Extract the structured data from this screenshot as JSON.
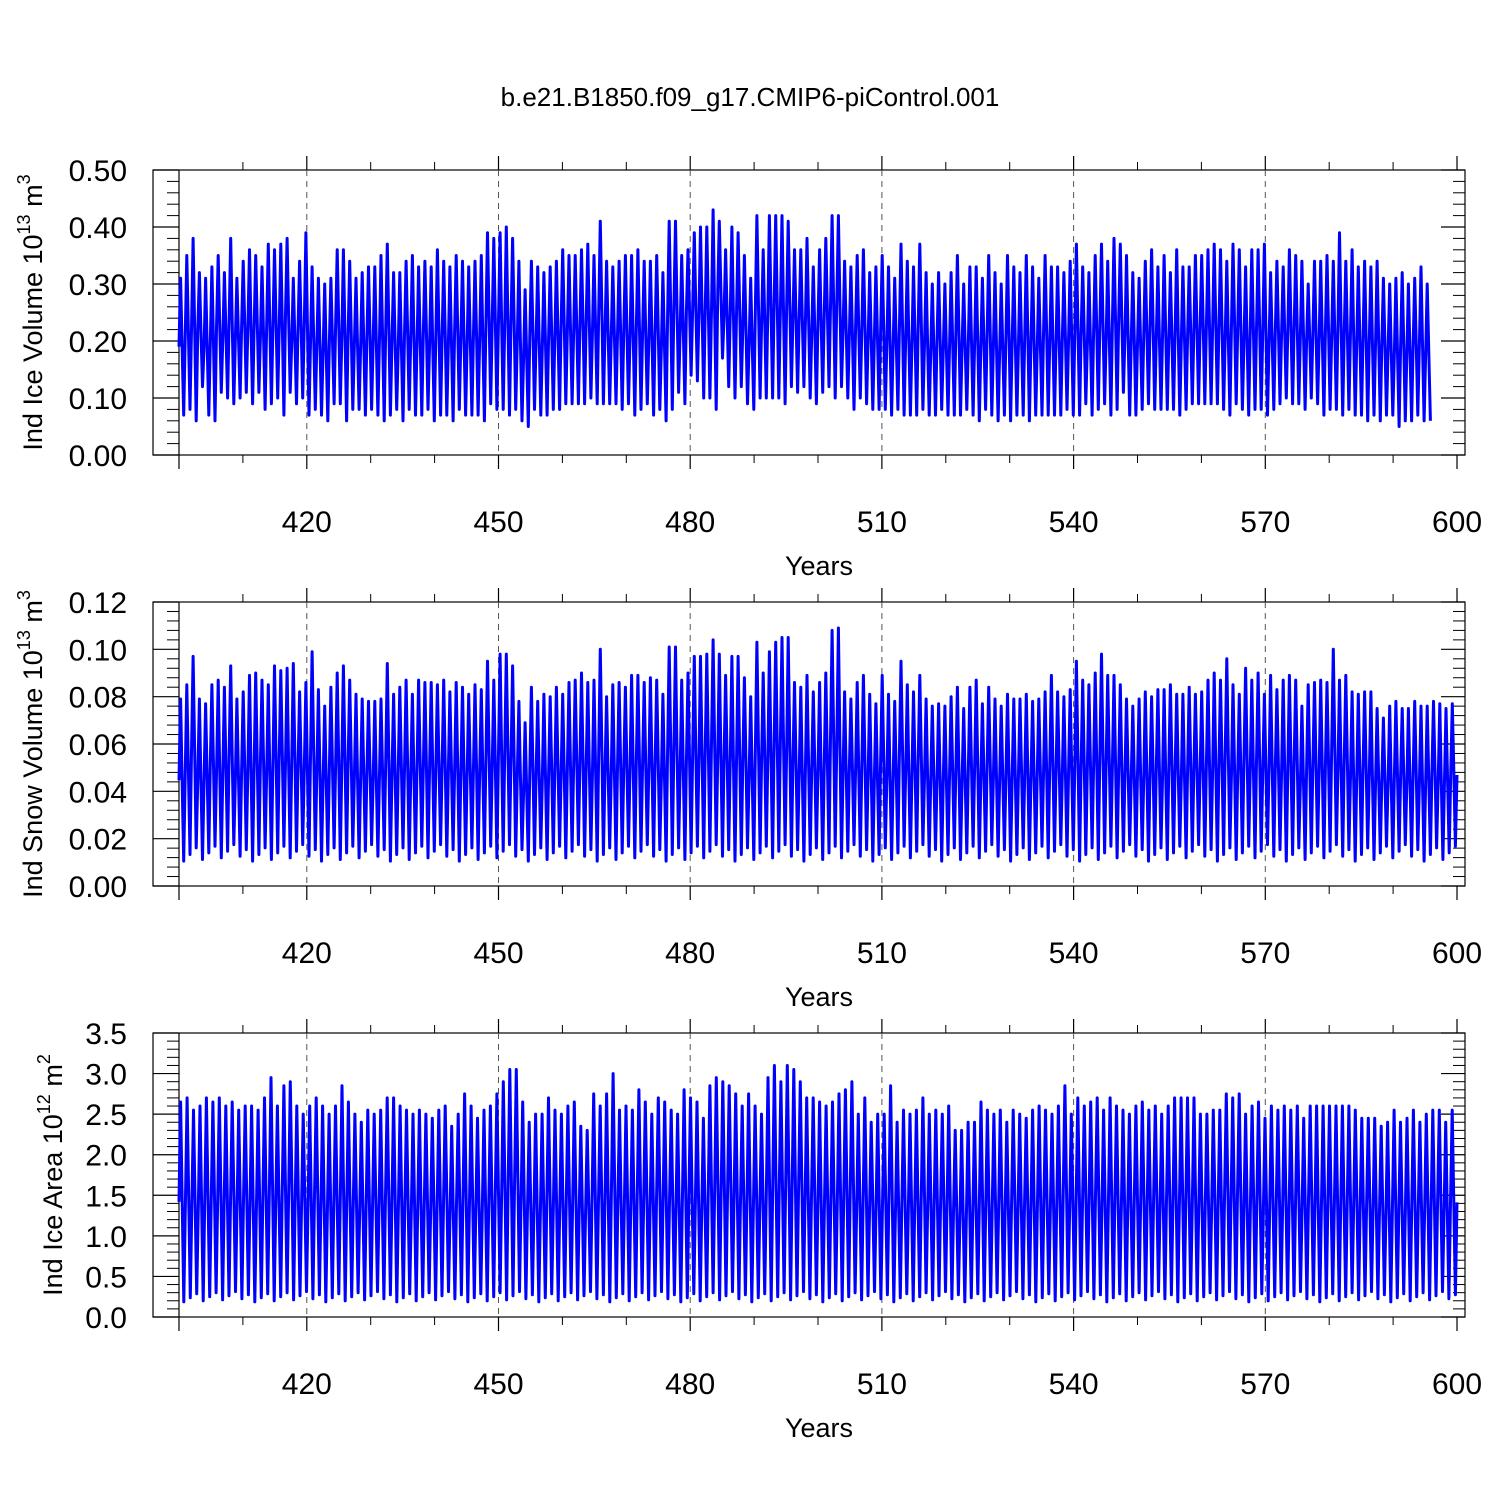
{
  "title": "b.e21.B1850.f09_g17.CMIP6-piControl.001",
  "colors": {
    "series": "#0000ff",
    "axis": "#000000",
    "grid": "#000000"
  },
  "chart_data": [
    {
      "type": "line",
      "title": "b.e21.B1850.f09_g17.CMIP6-piControl.001",
      "xlabel": "Years",
      "ylabel_prefix": "Ind Ice Volume 10",
      "ylabel_exp": "13",
      "ylabel_unit": "m",
      "ylabel_unit_exp": "3",
      "xlim": [
        400,
        600
      ],
      "ylim": [
        0,
        0.5
      ],
      "x_ticks": [
        "420",
        "450",
        "480",
        "510",
        "540",
        "570",
        "600"
      ],
      "y_ticks": [
        "0.00",
        "0.10",
        "0.20",
        "0.30",
        "0.40",
        "0.50"
      ],
      "grid": "vertical dashed at major x ticks",
      "series": [
        {
          "x_start": 400,
          "x_end": 600,
          "peaks": [
            0.31,
            0.35,
            0.38,
            0.32,
            0.31,
            0.33,
            0.35,
            0.32,
            0.38,
            0.31,
            0.34,
            0.36,
            0.35,
            0.33,
            0.37,
            0.36,
            0.37,
            0.38,
            0.31,
            0.34,
            0.39,
            0.33,
            0.31,
            0.3,
            0.31,
            0.36,
            0.36,
            0.34,
            0.31,
            0.32,
            0.33,
            0.33,
            0.35,
            0.37,
            0.32,
            0.32,
            0.34,
            0.35,
            0.33,
            0.34,
            0.33,
            0.36,
            0.34,
            0.33,
            0.35,
            0.34,
            0.33,
            0.34,
            0.35,
            0.39,
            0.38,
            0.39,
            0.4,
            0.38,
            0.34,
            0.29,
            0.34,
            0.33,
            0.32,
            0.33,
            0.34,
            0.36,
            0.35,
            0.35,
            0.36,
            0.37,
            0.35,
            0.41,
            0.34,
            0.33,
            0.34,
            0.35,
            0.35,
            0.36,
            0.34,
            0.34,
            0.35,
            0.32,
            0.41,
            0.41,
            0.35,
            0.36,
            0.39,
            0.4,
            0.4,
            0.43,
            0.41,
            0.36,
            0.4,
            0.39,
            0.35,
            0.31,
            0.42,
            0.36,
            0.42,
            0.42,
            0.42,
            0.41,
            0.36,
            0.36,
            0.38,
            0.33,
            0.36,
            0.38,
            0.42,
            0.42,
            0.34,
            0.33,
            0.35,
            0.36,
            0.32,
            0.33,
            0.35,
            0.33,
            0.31,
            0.37,
            0.34,
            0.33,
            0.37,
            0.32,
            0.3,
            0.32,
            0.3,
            0.32,
            0.35,
            0.3,
            0.33,
            0.33,
            0.31,
            0.35,
            0.32,
            0.3,
            0.35,
            0.33,
            0.32,
            0.35,
            0.33,
            0.31,
            0.35,
            0.33,
            0.33,
            0.32,
            0.34,
            0.37,
            0.33,
            0.32,
            0.35,
            0.37,
            0.34,
            0.38,
            0.37,
            0.35,
            0.32,
            0.31,
            0.34,
            0.36,
            0.33,
            0.35,
            0.32,
            0.36,
            0.33,
            0.33,
            0.35,
            0.35,
            0.36,
            0.37,
            0.36,
            0.34,
            0.37,
            0.36,
            0.33,
            0.36,
            0.36,
            0.37,
            0.32,
            0.34,
            0.33,
            0.36,
            0.35,
            0.34,
            0.3,
            0.34,
            0.34,
            0.35,
            0.34,
            0.39,
            0.34,
            0.36,
            0.33,
            0.34,
            0.33,
            0.34,
            0.31,
            0.3,
            0.31,
            0.32,
            0.3,
            0.31,
            0.33,
            0.3,
            0.32,
            0.31,
            0.33,
            0.32
          ],
          "troughs": [
            0.07,
            0.08,
            0.06,
            0.12,
            0.07,
            0.06,
            0.11,
            0.1,
            0.09,
            0.1,
            0.11,
            0.09,
            0.11,
            0.08,
            0.09,
            0.1,
            0.07,
            0.11,
            0.09,
            0.1,
            0.07,
            0.08,
            0.07,
            0.06,
            0.09,
            0.09,
            0.06,
            0.08,
            0.08,
            0.07,
            0.08,
            0.07,
            0.06,
            0.07,
            0.08,
            0.06,
            0.08,
            0.07,
            0.07,
            0.08,
            0.06,
            0.07,
            0.07,
            0.06,
            0.08,
            0.07,
            0.07,
            0.07,
            0.06,
            0.09,
            0.08,
            0.08,
            0.07,
            0.08,
            0.06,
            0.05,
            0.08,
            0.07,
            0.07,
            0.08,
            0.08,
            0.09,
            0.09,
            0.09,
            0.09,
            0.1,
            0.09,
            0.09,
            0.09,
            0.09,
            0.08,
            0.09,
            0.07,
            0.08,
            0.09,
            0.07,
            0.08,
            0.06,
            0.08,
            0.11,
            0.09,
            0.14,
            0.13,
            0.1,
            0.1,
            0.08,
            0.17,
            0.12,
            0.1,
            0.12,
            0.09,
            0.08,
            0.1,
            0.1,
            0.1,
            0.1,
            0.09,
            0.12,
            0.11,
            0.12,
            0.1,
            0.09,
            0.11,
            0.12,
            0.1,
            0.12,
            0.1,
            0.08,
            0.1,
            0.09,
            0.08,
            0.08,
            0.08,
            0.07,
            0.08,
            0.07,
            0.07,
            0.07,
            0.08,
            0.07,
            0.07,
            0.08,
            0.07,
            0.07,
            0.07,
            0.08,
            0.07,
            0.06,
            0.08,
            0.07,
            0.06,
            0.07,
            0.06,
            0.07,
            0.07,
            0.06,
            0.07,
            0.07,
            0.07,
            0.07,
            0.07,
            0.08,
            0.07,
            0.07,
            0.09,
            0.07,
            0.08,
            0.09,
            0.07,
            0.08,
            0.11,
            0.07,
            0.07,
            0.08,
            0.09,
            0.08,
            0.08,
            0.08,
            0.08,
            0.07,
            0.08,
            0.09,
            0.09,
            0.09,
            0.09,
            0.09,
            0.08,
            0.07,
            0.09,
            0.08,
            0.07,
            0.08,
            0.08,
            0.07,
            0.08,
            0.09,
            0.1,
            0.09,
            0.09,
            0.08,
            0.1,
            0.09,
            0.07,
            0.08,
            0.08,
            0.07,
            0.08,
            0.07,
            0.07,
            0.06,
            0.07,
            0.06,
            0.07,
            0.07,
            0.05,
            0.06,
            0.06,
            0.07,
            0.06,
            0.06
          ]
        }
      ]
    },
    {
      "type": "line",
      "xlabel": "Years",
      "ylabel_prefix": "Ind Snow Volume 10",
      "ylabel_exp": "13",
      "ylabel_unit": "m",
      "ylabel_unit_exp": "3",
      "xlim": [
        400,
        600
      ],
      "ylim": [
        0,
        0.12
      ],
      "x_ticks": [
        "420",
        "450",
        "480",
        "510",
        "540",
        "570",
        "600"
      ],
      "y_ticks": [
        "0.00",
        "0.02",
        "0.04",
        "0.06",
        "0.08",
        "0.10",
        "0.12"
      ],
      "grid": "vertical dashed at major x ticks",
      "series": [
        {
          "x_start": 400,
          "x_end": 600,
          "peaks": [
            0.079,
            0.085,
            0.097,
            0.079,
            0.077,
            0.085,
            0.087,
            0.084,
            0.093,
            0.079,
            0.082,
            0.089,
            0.09,
            0.087,
            0.085,
            0.093,
            0.091,
            0.092,
            0.094,
            0.082,
            0.086,
            0.099,
            0.083,
            0.076,
            0.084,
            0.09,
            0.093,
            0.087,
            0.081,
            0.079,
            0.078,
            0.078,
            0.079,
            0.094,
            0.081,
            0.084,
            0.087,
            0.081,
            0.087,
            0.086,
            0.086,
            0.085,
            0.087,
            0.082,
            0.086,
            0.084,
            0.081,
            0.085,
            0.083,
            0.095,
            0.087,
            0.098,
            0.098,
            0.093,
            0.078,
            0.069,
            0.084,
            0.078,
            0.081,
            0.08,
            0.084,
            0.081,
            0.086,
            0.087,
            0.09,
            0.086,
            0.087,
            0.1,
            0.08,
            0.085,
            0.086,
            0.084,
            0.089,
            0.089,
            0.086,
            0.088,
            0.087,
            0.081,
            0.101,
            0.101,
            0.087,
            0.09,
            0.097,
            0.097,
            0.098,
            0.104,
            0.098,
            0.089,
            0.097,
            0.097,
            0.088,
            0.08,
            0.103,
            0.09,
            0.099,
            0.103,
            0.105,
            0.105,
            0.086,
            0.084,
            0.089,
            0.082,
            0.086,
            0.09,
            0.108,
            0.109,
            0.082,
            0.079,
            0.086,
            0.089,
            0.081,
            0.077,
            0.089,
            0.081,
            0.078,
            0.095,
            0.085,
            0.082,
            0.089,
            0.079,
            0.076,
            0.077,
            0.076,
            0.08,
            0.084,
            0.075,
            0.084,
            0.087,
            0.077,
            0.084,
            0.079,
            0.076,
            0.081,
            0.079,
            0.079,
            0.081,
            0.078,
            0.079,
            0.082,
            0.089,
            0.082,
            0.08,
            0.083,
            0.095,
            0.087,
            0.085,
            0.09,
            0.098,
            0.089,
            0.089,
            0.085,
            0.079,
            0.076,
            0.079,
            0.082,
            0.08,
            0.083,
            0.083,
            0.085,
            0.081,
            0.081,
            0.084,
            0.081,
            0.082,
            0.087,
            0.09,
            0.087,
            0.096,
            0.085,
            0.081,
            0.092,
            0.087,
            0.09,
            0.081,
            0.089,
            0.083,
            0.087,
            0.089,
            0.087,
            0.076,
            0.085,
            0.086,
            0.087,
            0.086,
            0.1,
            0.087,
            0.089,
            0.082,
            0.081,
            0.082,
            0.082,
            0.075,
            0.071,
            0.076,
            0.078,
            0.075,
            0.075,
            0.078,
            0.076,
            0.076,
            0.078,
            0.077,
            0.075,
            0.077
          ]
        }
      ],
      "troughs_level": 0.014
    },
    {
      "type": "line",
      "xlabel": "Years",
      "ylabel_prefix": "Ind Ice Area 10",
      "ylabel_exp": "12",
      "ylabel_unit": "m",
      "ylabel_unit_exp": "2",
      "xlim": [
        400,
        600
      ],
      "ylim": [
        0,
        3.5
      ],
      "x_ticks": [
        "420",
        "450",
        "480",
        "510",
        "540",
        "570",
        "600"
      ],
      "y_ticks": [
        "0.0",
        "0.5",
        "1.0",
        "1.5",
        "2.0",
        "2.5",
        "3.0",
        "3.5"
      ],
      "grid": "vertical dashed at major x ticks",
      "series": [
        {
          "x_start": 400,
          "x_end": 600,
          "peaks": [
            2.65,
            2.7,
            2.55,
            2.6,
            2.7,
            2.65,
            2.7,
            2.6,
            2.65,
            2.55,
            2.6,
            2.6,
            2.55,
            2.7,
            2.95,
            2.6,
            2.85,
            2.9,
            2.6,
            2.5,
            2.6,
            2.7,
            2.6,
            2.5,
            2.6,
            2.85,
            2.65,
            2.5,
            2.4,
            2.55,
            2.5,
            2.55,
            2.7,
            2.7,
            2.6,
            2.55,
            2.5,
            2.55,
            2.5,
            2.45,
            2.55,
            2.6,
            2.35,
            2.5,
            2.75,
            2.6,
            2.45,
            2.55,
            2.6,
            2.75,
            2.9,
            3.05,
            3.05,
            2.65,
            2.4,
            2.5,
            2.5,
            2.7,
            2.55,
            2.5,
            2.6,
            2.65,
            2.35,
            2.3,
            2.75,
            2.6,
            2.75,
            3.0,
            2.55,
            2.6,
            2.55,
            2.8,
            2.65,
            2.5,
            2.7,
            2.65,
            2.55,
            2.5,
            2.8,
            2.7,
            2.65,
            2.45,
            2.85,
            2.95,
            2.9,
            2.85,
            2.75,
            2.6,
            2.75,
            2.6,
            2.5,
            2.95,
            3.1,
            2.9,
            3.1,
            3.05,
            2.9,
            2.7,
            2.7,
            2.65,
            2.6,
            2.65,
            2.75,
            2.8,
            2.9,
            2.5,
            2.7,
            2.4,
            2.5,
            2.5,
            2.85,
            2.4,
            2.55,
            2.5,
            2.55,
            2.7,
            2.5,
            2.55,
            2.5,
            2.6,
            2.3,
            2.3,
            2.4,
            2.4,
            2.65,
            2.55,
            2.5,
            2.55,
            2.4,
            2.55,
            2.5,
            2.45,
            2.55,
            2.6,
            2.55,
            2.5,
            2.6,
            2.85,
            2.5,
            2.7,
            2.6,
            2.65,
            2.7,
            2.55,
            2.7,
            2.6,
            2.55,
            2.5,
            2.6,
            2.65,
            2.55,
            2.6,
            2.5,
            2.6,
            2.7,
            2.7,
            2.7,
            2.7,
            2.5,
            2.5,
            2.55,
            2.55,
            2.75,
            2.7,
            2.75,
            2.5,
            2.6,
            2.65,
            2.45,
            2.6,
            2.55,
            2.6,
            2.55,
            2.6,
            2.45,
            2.6,
            2.6,
            2.6,
            2.6,
            2.6,
            2.6,
            2.6,
            2.55,
            2.45,
            2.45,
            2.45,
            2.35,
            2.4,
            2.55,
            2.4,
            2.45,
            2.55,
            2.4,
            2.5,
            2.55,
            2.55,
            2.4,
            2.55
          ]
        }
      ],
      "troughs_level": 0.25
    }
  ]
}
